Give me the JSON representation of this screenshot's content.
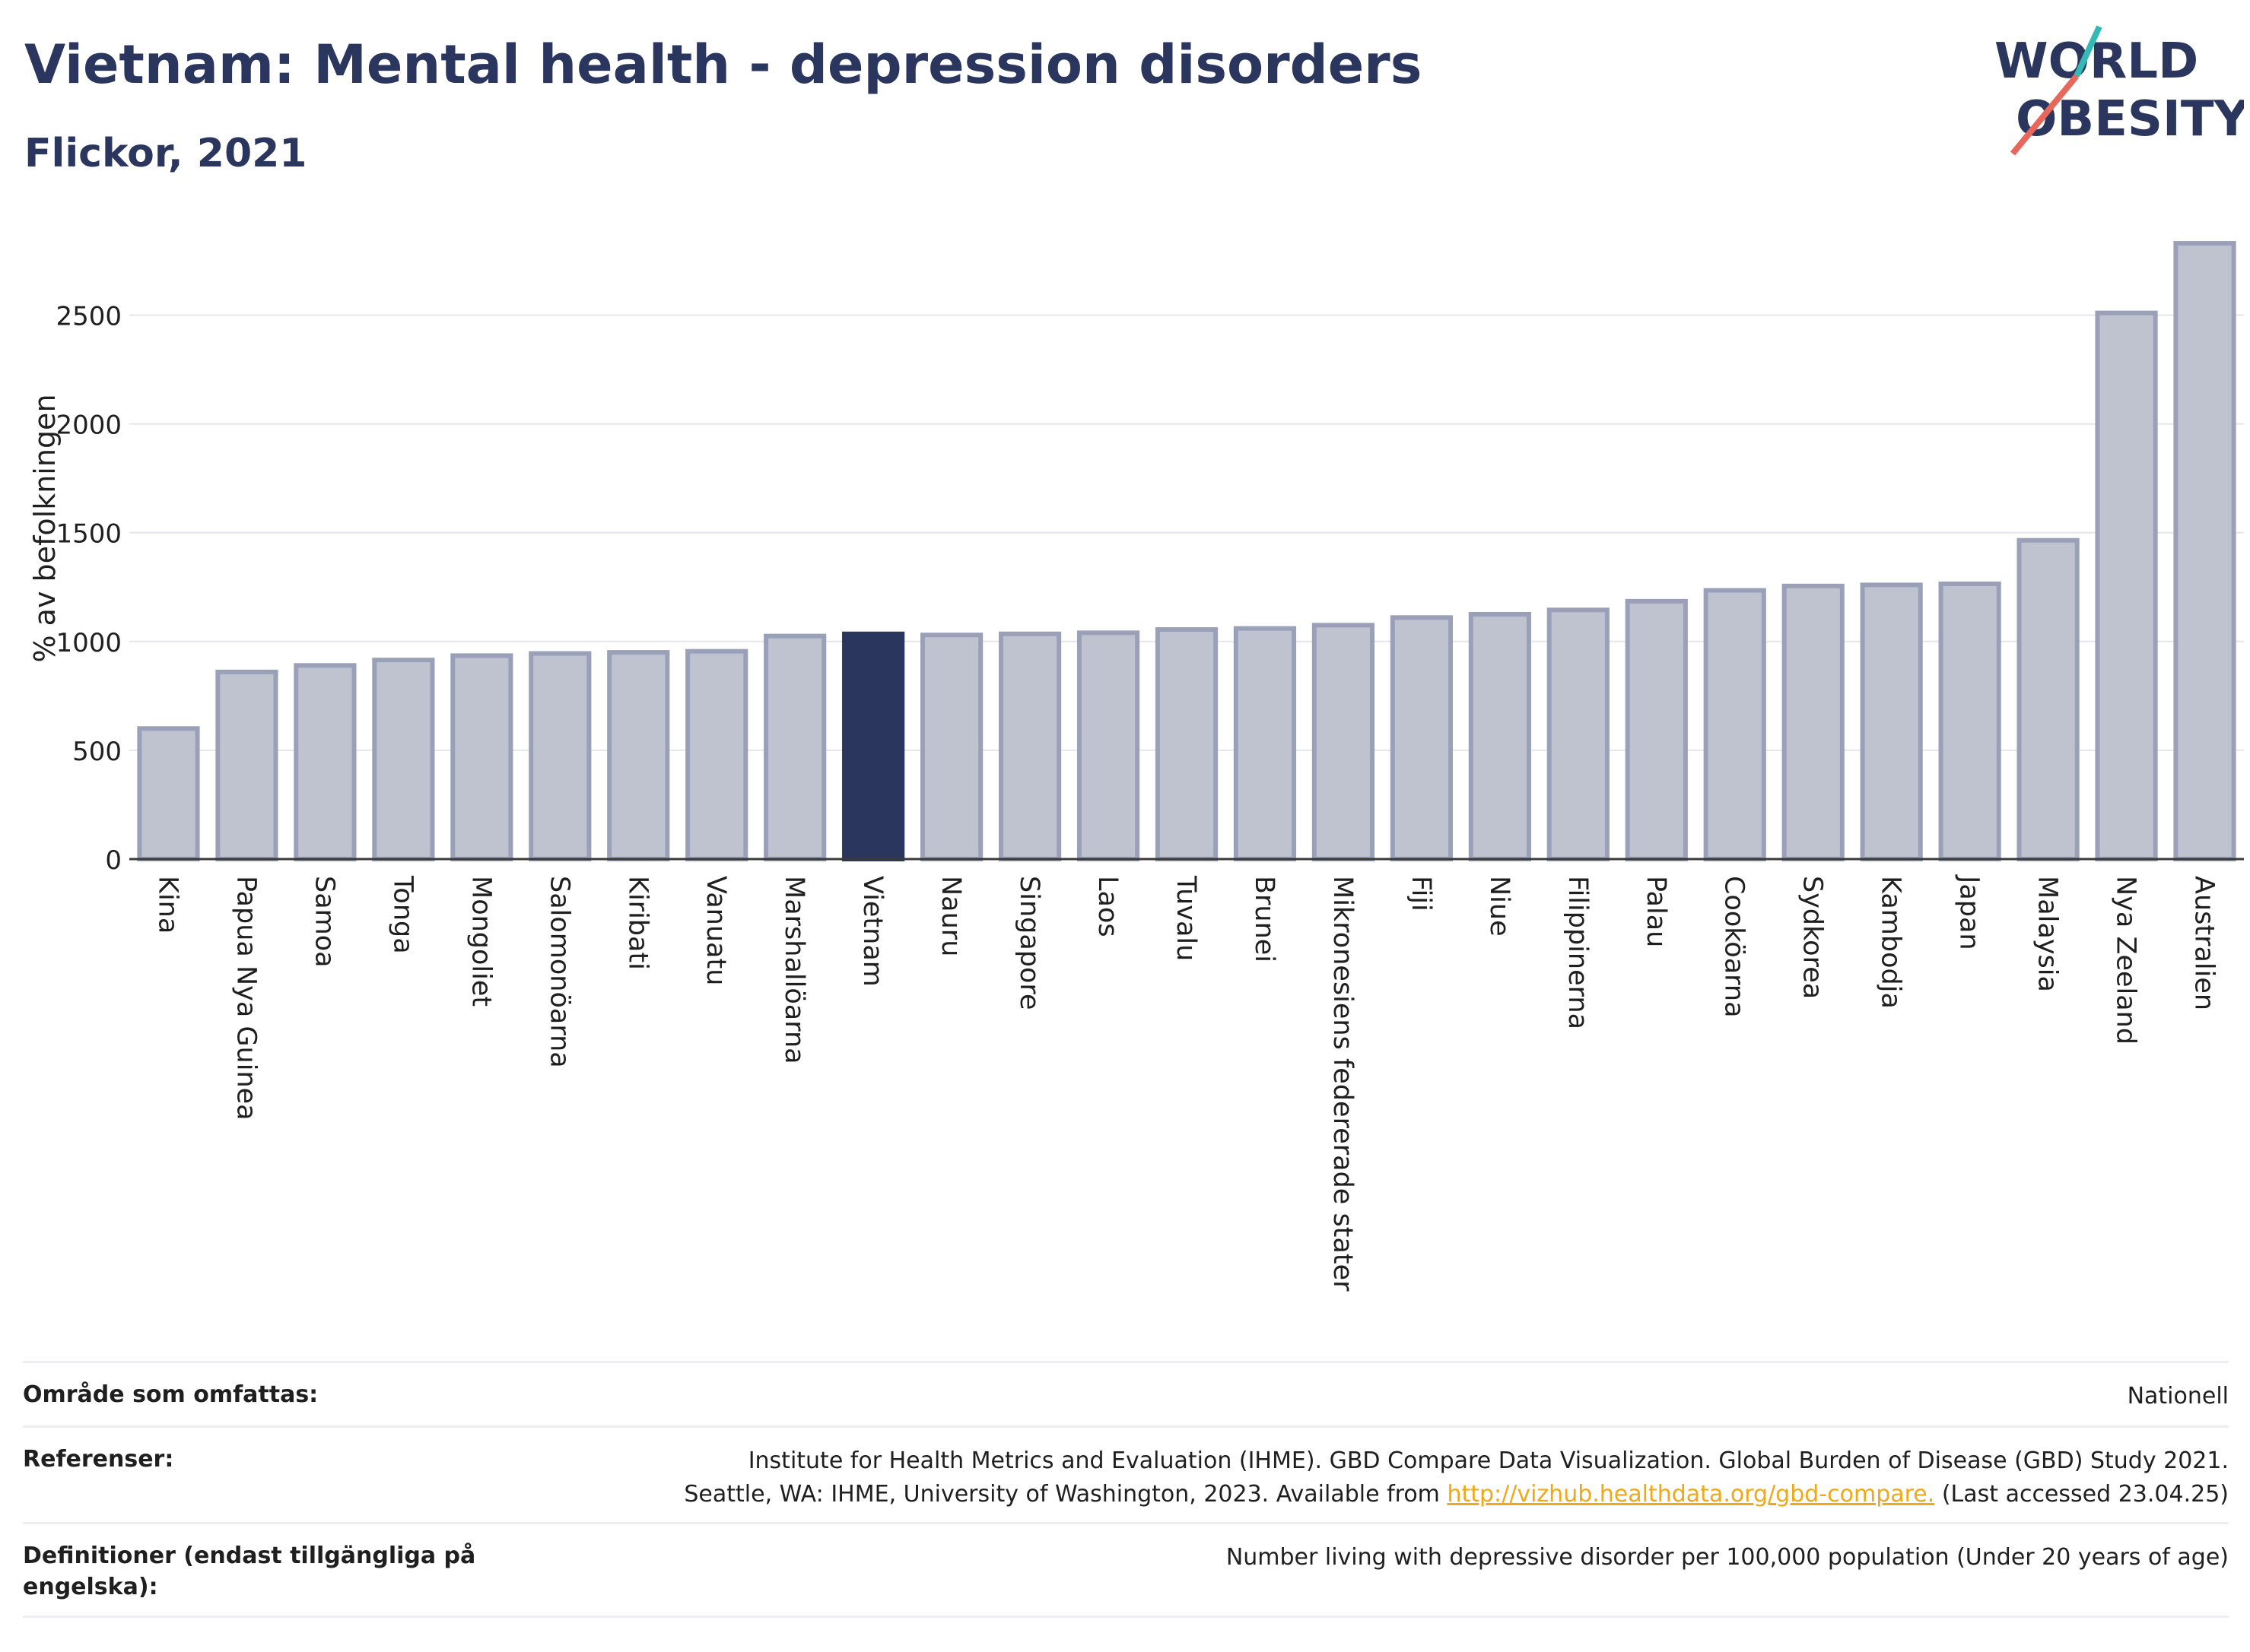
{
  "header": {
    "title": "Vietnam: Mental health - depression disorders",
    "subtitle": "Flickor, 2021"
  },
  "logo": {
    "line1": "WORLD",
    "line2": "OBESITY",
    "colors": {
      "text": "#2b365f",
      "slash_top": "#35b9b5",
      "slash_bottom": "#e8665a"
    }
  },
  "chart_data": {
    "type": "bar",
    "title": "Vietnam: Mental health - depression disorders",
    "subtitle": "Flickor, 2021",
    "ylabel": "% av befolkningen",
    "xlabel": "",
    "ylim": [
      0,
      2900
    ],
    "yticks": [
      0,
      500,
      1000,
      1500,
      2000,
      2500
    ],
    "grid": true,
    "highlight": "Vietnam",
    "colors": {
      "bar": "#bfc3d0",
      "bar_edge": "#9aa0b8",
      "highlight": "#2b365f"
    },
    "categories": [
      "Kina",
      "Papua Nya Guinea",
      "Samoa",
      "Tonga",
      "Mongoliet",
      "Salomonöarna",
      "Kiribati",
      "Vanuatu",
      "Marshallöarna",
      "Vietnam",
      "Nauru",
      "Singapore",
      "Laos",
      "Tuvalu",
      "Brunei",
      "Mikronesiens federerade stater",
      "Fiji",
      "Niue",
      "Filippinerna",
      "Palau",
      "Cooköarna",
      "Sydkorea",
      "Kambodja",
      "Japan",
      "Malaysia",
      "Nya Zeeland",
      "Australien"
    ],
    "values": [
      600,
      860,
      890,
      915,
      935,
      945,
      950,
      955,
      1025,
      1035,
      1030,
      1035,
      1040,
      1055,
      1060,
      1075,
      1110,
      1125,
      1145,
      1185,
      1235,
      1255,
      1260,
      1265,
      1465,
      2510,
      2830
    ]
  },
  "meta": {
    "area_label": "Område som omfattas:",
    "area_value": "Nationell",
    "references_label": "Referenser:",
    "references_line1": "Institute for Health Metrics and Evaluation (IHME). GBD Compare Data Visualization. Global Burden of Disease (GBD) Study 2021.",
    "references_line2_pre": "Seattle, WA: IHME, University of Washington, 2023. Available from ",
    "references_link": "http://vizhub.healthdata.org/gbd-compare.",
    "references_line2_post": " (Last accessed 23.04.25)",
    "definitions_label": "Definitioner (endast tillgängliga på engelska):",
    "definitions_value": "Number living with depressive disorder per 100,000 population (Under 20 years of age)"
  }
}
